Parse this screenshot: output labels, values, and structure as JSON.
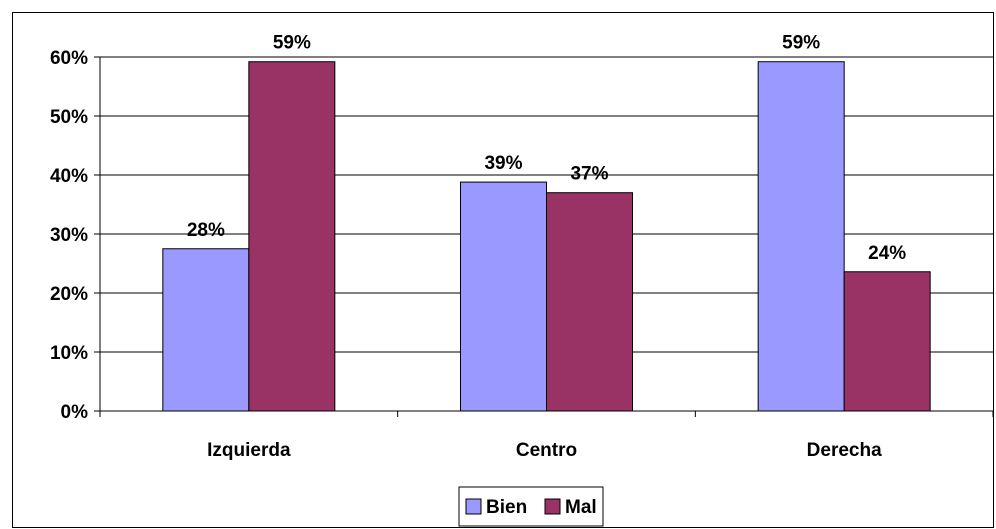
{
  "chart_data": {
    "type": "bar",
    "categories": [
      "Izquierda",
      "Centro",
      "Derecha"
    ],
    "series": [
      {
        "name": "Bien",
        "values": [
          0.275,
          0.388,
          0.592
        ],
        "labels": [
          "28%",
          "39%",
          "59%"
        ],
        "color": "#9999FF"
      },
      {
        "name": "Mal",
        "values": [
          0.592,
          0.37,
          0.236
        ],
        "labels": [
          "59%",
          "37%",
          "24%"
        ],
        "color": "#993366"
      }
    ],
    "ylim": [
      0,
      0.6
    ],
    "yticks": [
      {
        "value": 0.6,
        "label": "60%"
      },
      {
        "value": 0.5,
        "label": "50%"
      },
      {
        "value": 0.4,
        "label": "40%"
      },
      {
        "value": 0.3,
        "label": "30%"
      },
      {
        "value": 0.2,
        "label": "20%"
      },
      {
        "value": 0.1,
        "label": "10%"
      },
      {
        "value": 0.0,
        "label": "0%"
      }
    ],
    "grid": true,
    "legend": "bottom"
  }
}
